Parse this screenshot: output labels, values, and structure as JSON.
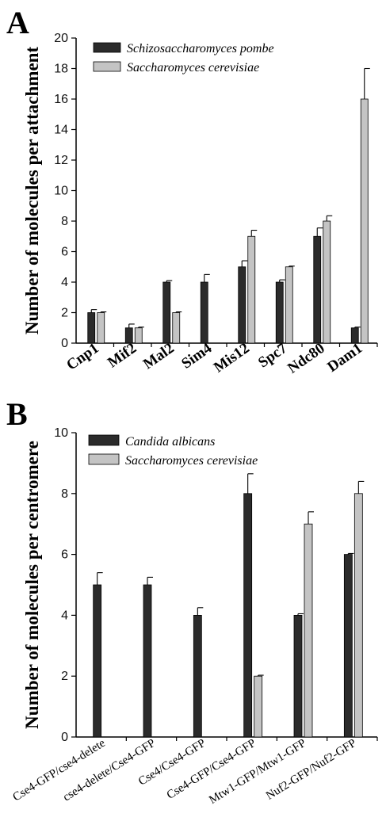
{
  "panels": [
    {
      "letter": "A",
      "ylabel": "Number of molecules per attachment",
      "legend": [
        "Schizosaccharomyces pombe",
        "Saccharomyces cerevisiae"
      ]
    },
    {
      "letter": "B",
      "ylabel": "Number of molecules per centromere",
      "legend": [
        "Candida albicans",
        "Saccharomyces cerevisiae"
      ]
    }
  ],
  "colors": {
    "dark": "#2b2b2b",
    "light": "#c4c4c4"
  },
  "chart_data": [
    {
      "type": "bar",
      "title": "",
      "xlabel": "",
      "ylabel": "Number of molecules per attachment",
      "ylim": [
        0,
        20
      ],
      "yticks": [
        0,
        2,
        4,
        6,
        8,
        10,
        12,
        14,
        16,
        18,
        20
      ],
      "grid": false,
      "legend_position": "top-left",
      "categories": [
        "Cnp1",
        "Mif2",
        "Mal2",
        "Sim4",
        "Mis12",
        "Spc7",
        "Ndc80",
        "Dam1"
      ],
      "series": [
        {
          "name": "Schizosaccharomyces pombe",
          "values": [
            2,
            1,
            4,
            4,
            5,
            4,
            7,
            1
          ],
          "errors": [
            0.2,
            0.25,
            0.1,
            0.5,
            0.4,
            0.15,
            0.55,
            0.05
          ]
        },
        {
          "name": "Saccharomyces cerevisiae",
          "values": [
            2,
            1,
            2,
            null,
            7,
            5,
            8,
            16
          ],
          "errors": [
            0.05,
            0.05,
            0.05,
            null,
            0.4,
            0.05,
            0.35,
            2.0
          ]
        }
      ]
    },
    {
      "type": "bar",
      "title": "",
      "xlabel": "",
      "ylabel": "Number of molecules per centromere",
      "ylim": [
        0,
        10
      ],
      "yticks": [
        0,
        2,
        4,
        6,
        8,
        10
      ],
      "grid": false,
      "legend_position": "top-left",
      "categories": [
        "Cse4-GFP/cse4-delete",
        "cse4-delete/Cse4-GFP",
        "Cse4/Cse4-GFP",
        "Cse4-GFP/Cse4-GFP",
        "Mtw1-GFP/Mtw1-GFP",
        "Nuf2-GFP/Nuf2-GFP"
      ],
      "series": [
        {
          "name": "Candida albicans",
          "values": [
            5,
            5,
            4,
            8,
            4,
            6
          ],
          "errors": [
            0.4,
            0.25,
            0.25,
            0.65,
            0.05,
            0.03
          ]
        },
        {
          "name": "Saccharomyces cerevisiae",
          "values": [
            null,
            null,
            null,
            2,
            7,
            8
          ],
          "errors": [
            null,
            null,
            null,
            0.03,
            0.4,
            0.4
          ]
        }
      ]
    }
  ]
}
